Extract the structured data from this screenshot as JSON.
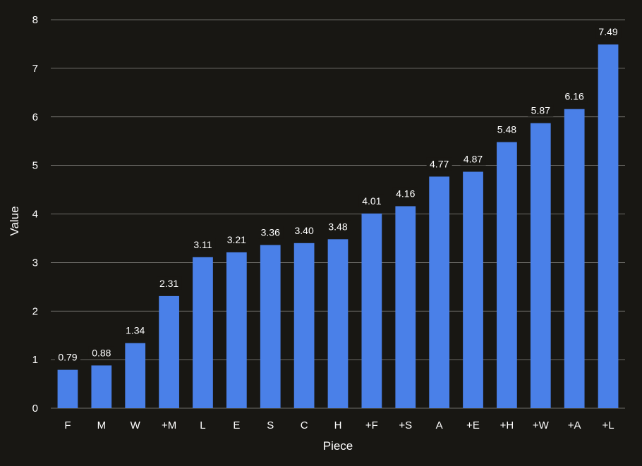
{
  "chart_data": {
    "type": "bar",
    "title": "",
    "xlabel": "Piece",
    "ylabel": "Value",
    "categories": [
      "F",
      "M",
      "W",
      "+M",
      "L",
      "E",
      "S",
      "C",
      "H",
      "+F",
      "+S",
      "A",
      "+E",
      "+H",
      "+W",
      "+A",
      "+L"
    ],
    "values": [
      0.79,
      0.88,
      1.34,
      2.31,
      3.11,
      3.21,
      3.36,
      3.4,
      3.48,
      4.01,
      4.16,
      4.77,
      4.87,
      5.48,
      5.87,
      6.16,
      7.49
    ],
    "value_labels": [
      "0.79",
      "0.88",
      "1.34",
      "2.31",
      "3.11",
      "3.21",
      "3.36",
      "3.40",
      "3.48",
      "4.01",
      "4.16",
      "4.77",
      "4.87",
      "5.48",
      "5.87",
      "6.16",
      "7.49"
    ],
    "ylim": [
      0,
      8
    ],
    "yticks": [
      0,
      1,
      2,
      3,
      4,
      5,
      6,
      7,
      8
    ],
    "grid": true,
    "legend": "none",
    "colors": {
      "bar": "#4a80e8",
      "background": "#181713",
      "grid": "#8a8a86",
      "text": "#ffffff"
    }
  }
}
